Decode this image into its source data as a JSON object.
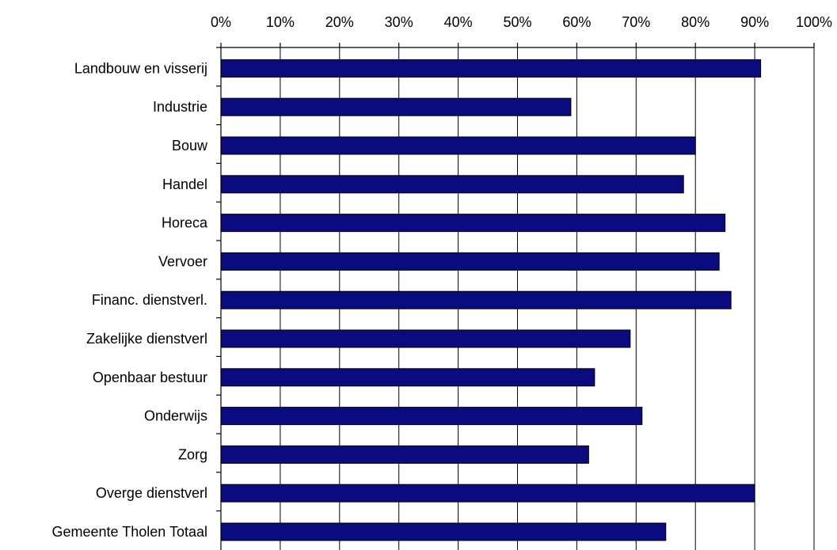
{
  "chart_data": {
    "type": "bar",
    "orientation": "horizontal",
    "categories": [
      "Landbouw en visserij",
      "Industrie",
      "Bouw",
      "Handel",
      "Horeca",
      "Vervoer",
      "Financ. dienstverl.",
      "Zakelijke dienstverl",
      "Openbaar bestuur",
      "Onderwijs",
      "Zorg",
      "Overge dienstverl",
      "Gemeente Tholen Totaal"
    ],
    "values": [
      91,
      59,
      80,
      78,
      85,
      84,
      86,
      69,
      63,
      71,
      62,
      90,
      75
    ],
    "xlim": [
      0,
      100
    ],
    "xticks": [
      "0%",
      "10%",
      "20%",
      "30%",
      "40%",
      "50%",
      "60%",
      "70%",
      "80%",
      "90%",
      "100%"
    ],
    "xaxis_position": "top",
    "grid": true,
    "legend": "none",
    "bar_color": "#0b0b80",
    "title": "",
    "xlabel": "",
    "ylabel": ""
  }
}
